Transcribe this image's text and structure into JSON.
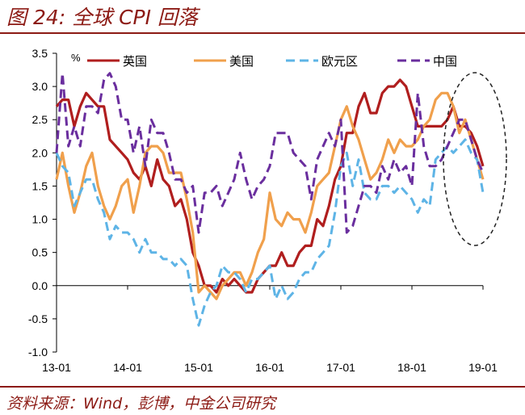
{
  "header": {
    "title": "图 24: 全球 CPI 回落"
  },
  "footer": {
    "source": "资料来源：Wind，彭博，中金公司研究"
  },
  "chart_data": {
    "type": "line",
    "title": "",
    "xlabel": "",
    "ylabel": "%",
    "ylim": [
      -1.0,
      3.5
    ],
    "yticks": [
      "3.5",
      "3.0",
      "2.5",
      "2.0",
      "1.5",
      "1.0",
      "0.5",
      "0.0",
      "-0.5",
      "-1.0"
    ],
    "xticks": [
      "13-01",
      "14-01",
      "15-01",
      "16-01",
      "17-01",
      "18-01",
      "19-01"
    ],
    "x_range": [
      0,
      72
    ],
    "grid": false,
    "legend": "top",
    "annotation": "dashed ellipse around latest months",
    "series": [
      {
        "name": "英国",
        "color": "#b01e1e",
        "dash": "solid",
        "values": [
          2.7,
          2.8,
          2.8,
          2.4,
          2.7,
          2.9,
          2.8,
          2.7,
          2.7,
          2.2,
          2.1,
          2.0,
          1.9,
          1.7,
          1.6,
          1.8,
          1.5,
          1.9,
          1.6,
          1.5,
          1.2,
          1.3,
          1.0,
          0.5,
          0.3,
          0.0,
          0.0,
          -0.1,
          0.1,
          0.0,
          0.1,
          0.0,
          -0.1,
          -0.1,
          0.1,
          0.2,
          0.3,
          0.3,
          0.5,
          0.3,
          0.3,
          0.5,
          0.6,
          0.6,
          1.0,
          0.9,
          1.2,
          1.6,
          1.8,
          2.3,
          2.3,
          2.7,
          2.9,
          2.6,
          2.6,
          2.9,
          3.0,
          3.0,
          3.1,
          3.0,
          2.7,
          2.4,
          2.4,
          2.4,
          2.4,
          2.4,
          2.5,
          2.7,
          2.4,
          2.4,
          2.3,
          2.1,
          1.8
        ]
      },
      {
        "name": "美国",
        "color": "#f0a04c",
        "dash": "solid",
        "values": [
          1.6,
          2.0,
          1.5,
          1.1,
          1.4,
          1.8,
          2.0,
          1.5,
          1.2,
          1.0,
          1.2,
          1.5,
          1.6,
          1.1,
          1.5,
          2.0,
          2.1,
          2.1,
          2.0,
          1.7,
          1.7,
          1.7,
          1.3,
          0.8,
          -0.1,
          0.0,
          -0.1,
          -0.2,
          0.0,
          0.1,
          0.2,
          0.2,
          0.0,
          0.2,
          0.5,
          0.7,
          1.4,
          1.0,
          0.9,
          1.1,
          1.0,
          1.0,
          0.8,
          1.1,
          1.5,
          1.6,
          1.7,
          2.1,
          2.5,
          2.7,
          2.4,
          2.2,
          1.9,
          1.6,
          1.7,
          1.9,
          2.2,
          2.0,
          2.2,
          2.1,
          2.1,
          2.2,
          2.4,
          2.5,
          2.8,
          2.9,
          2.9,
          2.7,
          2.3,
          2.5,
          2.2,
          1.9,
          1.6
        ]
      },
      {
        "name": "欧元区",
        "color": "#5eb4e6",
        "dash": "dashed",
        "values": [
          2.0,
          1.8,
          1.7,
          1.2,
          1.4,
          1.6,
          1.6,
          1.3,
          1.1,
          0.7,
          0.9,
          0.8,
          0.8,
          0.7,
          0.5,
          0.7,
          0.5,
          0.5,
          0.4,
          0.4,
          0.3,
          0.4,
          0.3,
          -0.2,
          -0.6,
          -0.3,
          -0.1,
          0.0,
          0.3,
          0.2,
          0.2,
          0.1,
          -0.1,
          0.1,
          0.1,
          0.2,
          0.3,
          -0.2,
          0.0,
          -0.2,
          -0.1,
          0.1,
          0.2,
          0.2,
          0.4,
          0.5,
          0.6,
          1.1,
          1.8,
          2.0,
          1.5,
          1.9,
          1.4,
          1.3,
          1.3,
          1.5,
          1.5,
          1.4,
          1.5,
          1.4,
          1.3,
          1.1,
          1.3,
          1.2,
          1.9,
          2.0,
          2.1,
          2.0,
          2.1,
          2.2,
          2.0,
          1.9,
          1.4
        ]
      },
      {
        "name": "中国",
        "color": "#6a2e9e",
        "dash": "dashed",
        "values": [
          2.0,
          3.2,
          2.1,
          2.4,
          2.1,
          2.7,
          2.7,
          2.6,
          3.1,
          3.2,
          3.0,
          2.5,
          2.5,
          2.0,
          2.4,
          1.8,
          2.5,
          2.3,
          2.3,
          2.0,
          1.6,
          1.6,
          1.4,
          1.5,
          0.8,
          1.4,
          1.4,
          1.5,
          1.2,
          1.4,
          1.6,
          2.0,
          1.6,
          1.3,
          1.5,
          1.6,
          1.8,
          2.3,
          2.3,
          2.3,
          2.0,
          1.9,
          1.8,
          1.3,
          1.9,
          2.1,
          2.3,
          2.1,
          2.5,
          0.8,
          0.9,
          1.2,
          1.5,
          1.5,
          1.4,
          1.8,
          1.6,
          1.9,
          1.7,
          1.8,
          1.5,
          2.9,
          2.1,
          1.8,
          1.8,
          1.9,
          2.1,
          2.3,
          2.5,
          2.5,
          2.2,
          1.9,
          1.7
        ]
      }
    ]
  }
}
